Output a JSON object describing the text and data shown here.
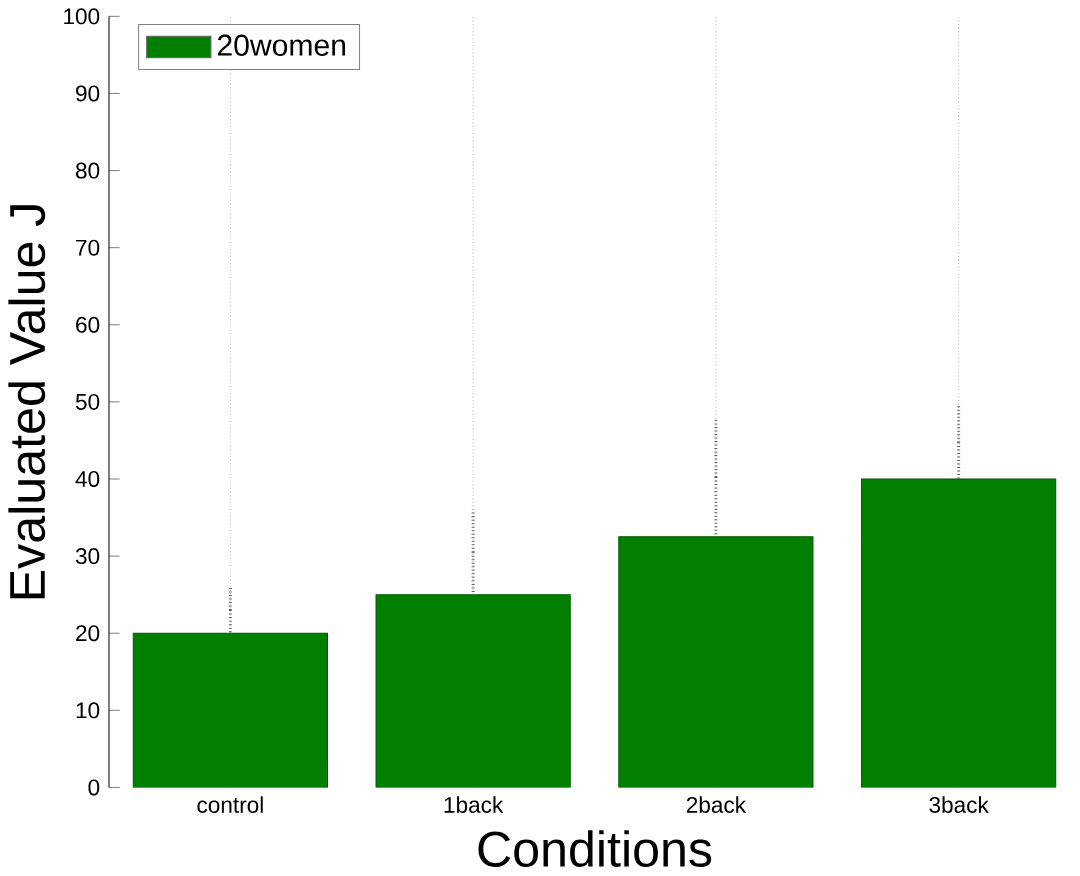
{
  "chart_data": {
    "type": "bar",
    "xlabel": "Conditions",
    "ylabel": "Evaluated Value J",
    "categories": [
      "control",
      "1back",
      "2back",
      "3back"
    ],
    "series": [
      {
        "name": "20women",
        "color": "#007f00",
        "values": [
          20,
          25,
          32.5,
          40
        ],
        "errors": [
          [
            20,
            26
          ],
          [
            25,
            36
          ],
          [
            32.5,
            48
          ],
          [
            40,
            49.5
          ]
        ]
      }
    ],
    "ylim": [
      0,
      100
    ],
    "yticks": [
      0,
      10,
      20,
      30,
      40,
      50,
      60,
      70,
      80,
      90,
      100
    ],
    "grid": "x",
    "legend": "top left"
  }
}
